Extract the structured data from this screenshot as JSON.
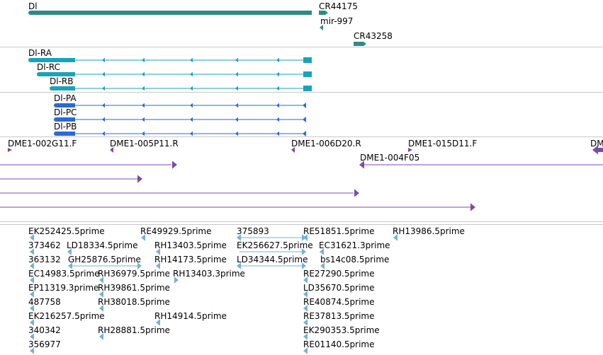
{
  "colors": {
    "gene": "#2e8b84",
    "transcript_rna": "#1aa3b8",
    "transcript_protein": "#2a6ad6",
    "clone": "#7a4ab0",
    "est": "#74b2d8",
    "divider": "#c8c8c8"
  },
  "tracks": {
    "genes": {
      "labels": [
        "Dl",
        "CR44175",
        "mir-997",
        "CR43258"
      ]
    },
    "transcripts": {
      "labels": [
        "Dl-RA",
        "Dl-RC",
        "Dl-RB"
      ]
    },
    "polypeptides": {
      "labels": [
        "Dl-PA",
        "Dl-PC",
        "Dl-PB"
      ]
    },
    "clones": {
      "labels": [
        "DME1-002G11.F",
        "DME1-005P11.R",
        "DME1-006D20.R",
        "DME1-015D11.F",
        "DM",
        "DME1-004F05"
      ]
    },
    "ests": {
      "labels": [
        "EK252425.5prime",
        "RE49929.5prime",
        "375893",
        "RE51851.5prime",
        "RH13986.5prime",
        "373462",
        "LD18334.5prime",
        "RH13403.5prime",
        "EK256627.5prime",
        "EC31621.3prime",
        "363132",
        "GH25876.5prime",
        "RH14173.5prime",
        "LD34344.5prime",
        "bs14c08.5prime",
        "EC14983.5prime",
        "RH36979.5prime",
        "RH13403.3prime",
        "RE27290.5prime",
        "EP11319.3prime",
        "RH39861.5prime",
        "LD35670.5prime",
        "487758",
        "RH38018.5prime",
        "RE40874.5prime",
        "EK216257.5prime",
        "RH14914.5prime",
        "RE37813.5prime",
        "340342",
        "RH28881.5prime",
        "EK290353.5prime",
        "356977",
        "RE01140.5prime"
      ]
    }
  }
}
